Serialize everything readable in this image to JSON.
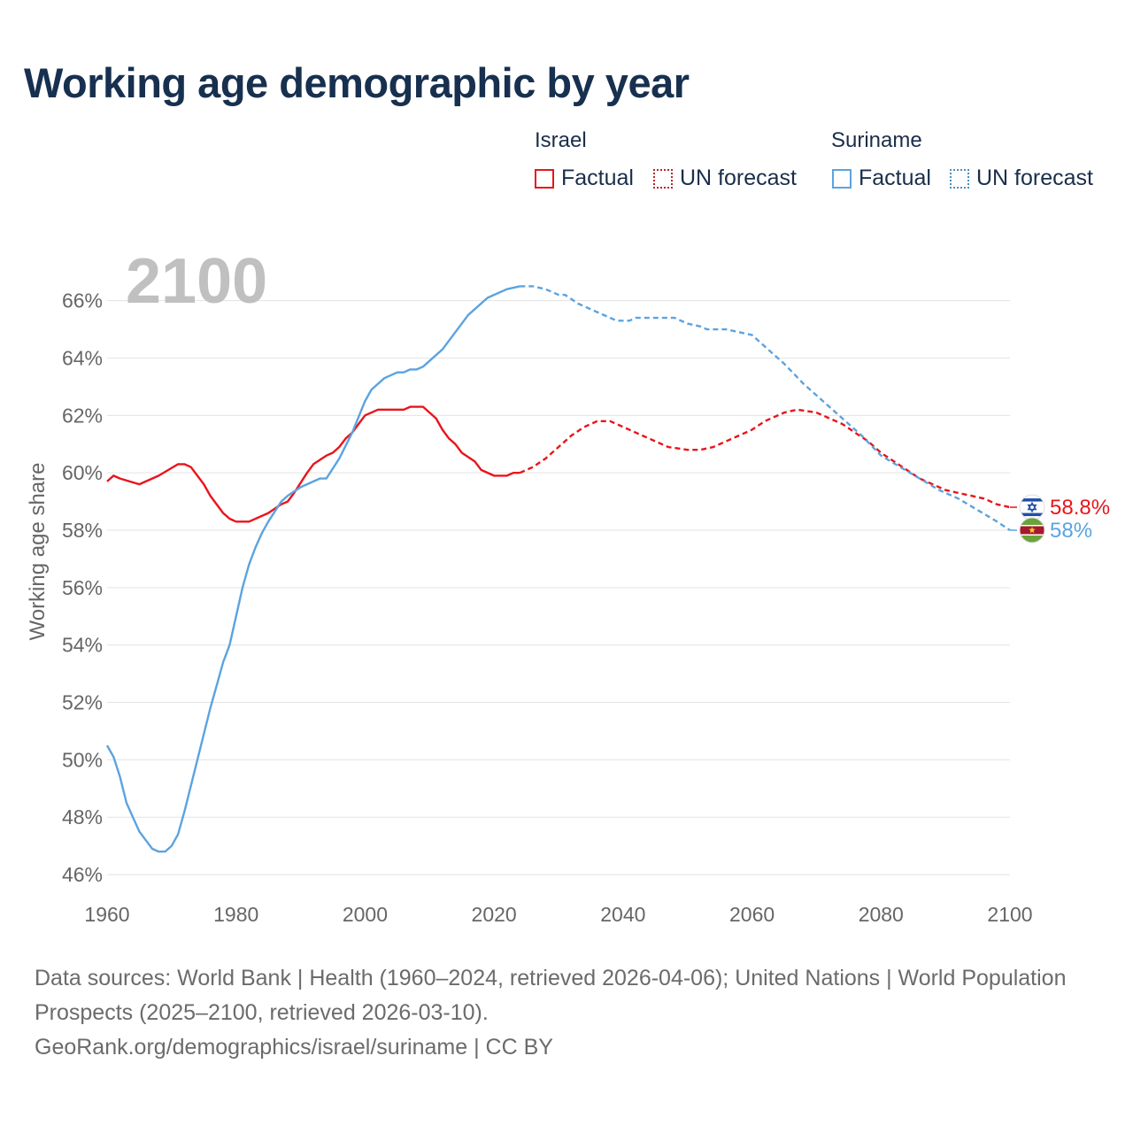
{
  "title": "Working age demographic by year",
  "legend": {
    "groups": [
      {
        "name": "Israel",
        "factual_label": "Factual",
        "forecast_label": "UN forecast",
        "color": "#e8151b"
      },
      {
        "name": "Suriname",
        "factual_label": "Factual",
        "forecast_label": "UN forecast",
        "color": "#5ba3e0"
      }
    ]
  },
  "chart_data": {
    "type": "line",
    "title": "Working age demographic by year",
    "year_label": "2100",
    "ylabel": "Working age share",
    "xlabel": "",
    "xlim": [
      1960,
      2100
    ],
    "ylim": [
      45.2,
      67.5
    ],
    "xticks": [
      "1960",
      "1980",
      "2000",
      "2020",
      "2040",
      "2060",
      "2080",
      "2100"
    ],
    "xtick_values": [
      1960,
      1980,
      2000,
      2020,
      2040,
      2060,
      2080,
      2100
    ],
    "yticks": [
      "46%",
      "48%",
      "50%",
      "52%",
      "54%",
      "56%",
      "58%",
      "60%",
      "62%",
      "64%",
      "66%"
    ],
    "ytick_values": [
      46,
      48,
      50,
      52,
      54,
      56,
      58,
      60,
      62,
      64,
      66
    ],
    "factual_end_year": 2024,
    "series": [
      {
        "name": "Israel",
        "color": "#e8151b",
        "end_label": "58.8%",
        "flag_icon": "israel-flag-icon",
        "points": [
          [
            1960,
            59.7
          ],
          [
            1961,
            59.9
          ],
          [
            1962,
            59.8
          ],
          [
            1965,
            59.6
          ],
          [
            1968,
            59.9
          ],
          [
            1971,
            60.3
          ],
          [
            1972,
            60.3
          ],
          [
            1973,
            60.2
          ],
          [
            1975,
            59.6
          ],
          [
            1976,
            59.2
          ],
          [
            1978,
            58.6
          ],
          [
            1979,
            58.4
          ],
          [
            1980,
            58.3
          ],
          [
            1982,
            58.3
          ],
          [
            1985,
            58.6
          ],
          [
            1987,
            58.9
          ],
          [
            1988,
            59.0
          ],
          [
            1989,
            59.3
          ],
          [
            1991,
            60.0
          ],
          [
            1992,
            60.3
          ],
          [
            1994,
            60.6
          ],
          [
            1995,
            60.7
          ],
          [
            1996,
            60.9
          ],
          [
            1997,
            61.2
          ],
          [
            1998,
            61.4
          ],
          [
            1999,
            61.7
          ],
          [
            2000,
            62.0
          ],
          [
            2002,
            62.2
          ],
          [
            2004,
            62.2
          ],
          [
            2006,
            62.2
          ],
          [
            2007,
            62.3
          ],
          [
            2009,
            62.3
          ],
          [
            2011,
            61.9
          ],
          [
            2012,
            61.5
          ],
          [
            2013,
            61.2
          ],
          [
            2014,
            61.0
          ],
          [
            2015,
            60.7
          ],
          [
            2017,
            60.4
          ],
          [
            2018,
            60.1
          ],
          [
            2020,
            59.9
          ],
          [
            2022,
            59.9
          ],
          [
            2023,
            60.0
          ],
          [
            2024,
            60.0
          ],
          [
            2026,
            60.2
          ],
          [
            2028,
            60.5
          ],
          [
            2030,
            60.9
          ],
          [
            2032,
            61.3
          ],
          [
            2034,
            61.6
          ],
          [
            2036,
            61.8
          ],
          [
            2038,
            61.8
          ],
          [
            2040,
            61.6
          ],
          [
            2042,
            61.4
          ],
          [
            2045,
            61.1
          ],
          [
            2047,
            60.9
          ],
          [
            2050,
            60.8
          ],
          [
            2052,
            60.8
          ],
          [
            2054,
            60.9
          ],
          [
            2056,
            61.1
          ],
          [
            2058,
            61.3
          ],
          [
            2060,
            61.5
          ],
          [
            2062,
            61.8
          ],
          [
            2065,
            62.1
          ],
          [
            2067,
            62.2
          ],
          [
            2070,
            62.1
          ],
          [
            2072,
            61.9
          ],
          [
            2074,
            61.7
          ],
          [
            2076,
            61.4
          ],
          [
            2078,
            61.1
          ],
          [
            2080,
            60.7
          ],
          [
            2082,
            60.4
          ],
          [
            2084,
            60.1
          ],
          [
            2086,
            59.8
          ],
          [
            2088,
            59.6
          ],
          [
            2090,
            59.4
          ],
          [
            2092,
            59.3
          ],
          [
            2094,
            59.2
          ],
          [
            2096,
            59.1
          ],
          [
            2098,
            58.9
          ],
          [
            2100,
            58.8
          ]
        ]
      },
      {
        "name": "Suriname",
        "color": "#5ba3e0",
        "end_label": "58%",
        "flag_icon": "suriname-flag-icon",
        "points": [
          [
            1960,
            50.5
          ],
          [
            1961,
            50.1
          ],
          [
            1962,
            49.4
          ],
          [
            1963,
            48.5
          ],
          [
            1964,
            48.0
          ],
          [
            1965,
            47.5
          ],
          [
            1966,
            47.2
          ],
          [
            1967,
            46.9
          ],
          [
            1968,
            46.8
          ],
          [
            1969,
            46.8
          ],
          [
            1970,
            47.0
          ],
          [
            1971,
            47.4
          ],
          [
            1972,
            48.2
          ],
          [
            1973,
            49.1
          ],
          [
            1974,
            50.0
          ],
          [
            1975,
            50.9
          ],
          [
            1976,
            51.8
          ],
          [
            1977,
            52.6
          ],
          [
            1978,
            53.4
          ],
          [
            1979,
            54.0
          ],
          [
            1980,
            55.0
          ],
          [
            1981,
            56.0
          ],
          [
            1982,
            56.8
          ],
          [
            1983,
            57.4
          ],
          [
            1984,
            57.9
          ],
          [
            1985,
            58.3
          ],
          [
            1987,
            59.0
          ],
          [
            1988,
            59.2
          ],
          [
            1990,
            59.5
          ],
          [
            1992,
            59.7
          ],
          [
            1993,
            59.8
          ],
          [
            1994,
            59.8
          ],
          [
            1996,
            60.5
          ],
          [
            1998,
            61.4
          ],
          [
            2000,
            62.5
          ],
          [
            2001,
            62.9
          ],
          [
            2003,
            63.3
          ],
          [
            2005,
            63.5
          ],
          [
            2006,
            63.5
          ],
          [
            2007,
            63.6
          ],
          [
            2008,
            63.6
          ],
          [
            2009,
            63.7
          ],
          [
            2012,
            64.3
          ],
          [
            2014,
            64.9
          ],
          [
            2016,
            65.5
          ],
          [
            2019,
            66.1
          ],
          [
            2022,
            66.4
          ],
          [
            2024,
            66.5
          ],
          [
            2026,
            66.5
          ],
          [
            2028,
            66.4
          ],
          [
            2030,
            66.2
          ],
          [
            2031,
            66.2
          ],
          [
            2033,
            65.9
          ],
          [
            2036,
            65.6
          ],
          [
            2039,
            65.3
          ],
          [
            2041,
            65.3
          ],
          [
            2042,
            65.4
          ],
          [
            2045,
            65.4
          ],
          [
            2048,
            65.4
          ],
          [
            2050,
            65.2
          ],
          [
            2052,
            65.1
          ],
          [
            2053,
            65.0
          ],
          [
            2055,
            65.0
          ],
          [
            2056,
            65.0
          ],
          [
            2058,
            64.9
          ],
          [
            2060,
            64.8
          ],
          [
            2062,
            64.4
          ],
          [
            2065,
            63.8
          ],
          [
            2068,
            63.1
          ],
          [
            2071,
            62.5
          ],
          [
            2074,
            61.9
          ],
          [
            2077,
            61.3
          ],
          [
            2080,
            60.6
          ],
          [
            2083,
            60.2
          ],
          [
            2086,
            59.8
          ],
          [
            2089,
            59.4
          ],
          [
            2092,
            59.1
          ],
          [
            2095,
            58.7
          ],
          [
            2098,
            58.3
          ],
          [
            2100,
            58.0
          ]
        ]
      }
    ]
  },
  "footer": {
    "sources": "Data sources: World Bank | Health (1960–2024, retrieved 2026-04-06); United Nations | World Population Prospects (2025–2100, retrieved 2026-03-10).",
    "attribution": "GeoRank.org/demographics/israel/suriname | CC BY"
  }
}
